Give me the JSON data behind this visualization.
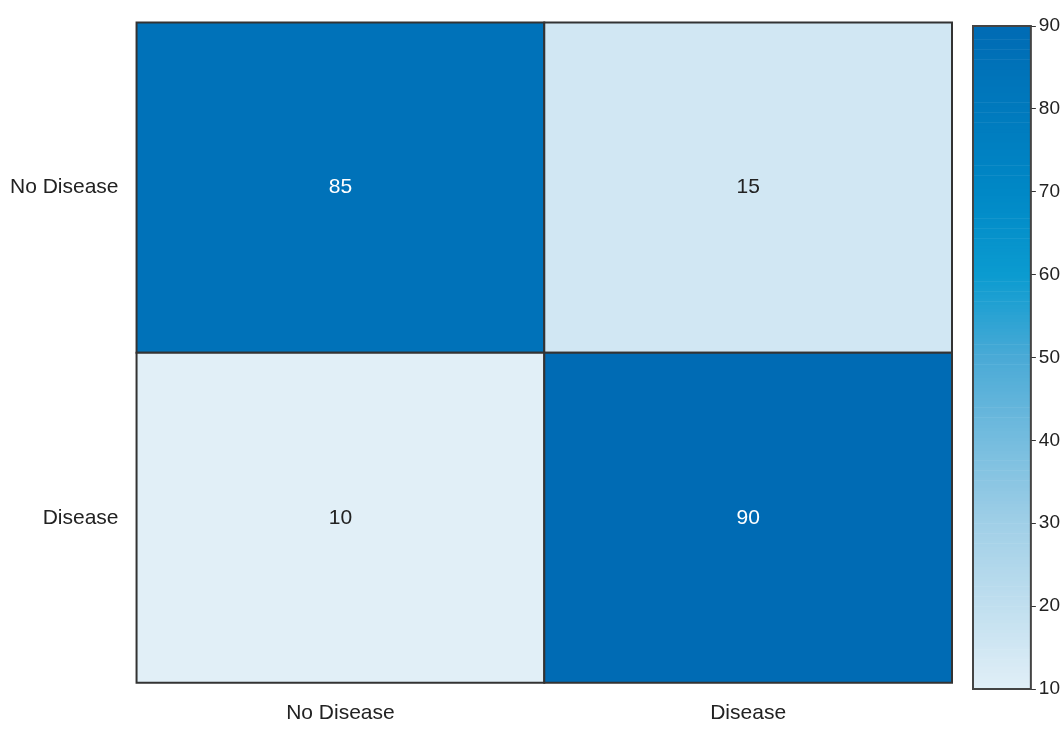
{
  "chart_data": {
    "type": "heatmap",
    "categories": [
      "No Disease",
      "Disease"
    ],
    "y_categories": [
      "No Disease",
      "Disease"
    ],
    "cells": [
      [
        85,
        15
      ],
      [
        10,
        90
      ]
    ],
    "data_labels": true,
    "clim": [
      10,
      90
    ],
    "cticks": [
      10,
      20,
      30,
      40,
      50,
      60,
      70,
      80,
      90
    ]
  }
}
